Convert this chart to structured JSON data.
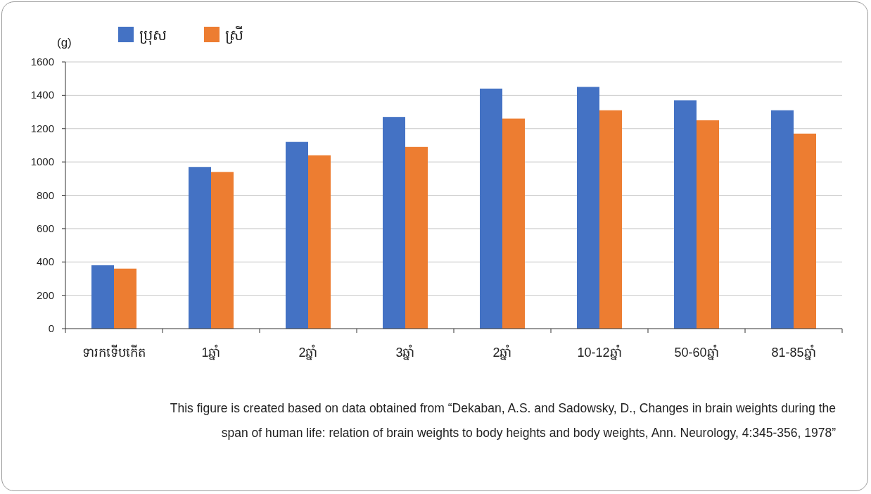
{
  "chart_data": {
    "type": "bar",
    "ylabel": "(g)",
    "categories": [
      "ទារកទើបកើត",
      "1ឆ្នាំ",
      "2ឆ្នាំ",
      "3ឆ្នាំ",
      "2ឆ្នាំ",
      "10-12ឆ្នាំ",
      "50-60ឆ្នាំ",
      "81-85ឆ្នាំ"
    ],
    "series": [
      {
        "name": "ប្រុស",
        "color": "#4472c4",
        "values": [
          380,
          970,
          1120,
          1270,
          1440,
          1450,
          1370,
          1310
        ]
      },
      {
        "name": "ស្រី",
        "color": "#ed7d31",
        "values": [
          360,
          940,
          1040,
          1090,
          1260,
          1310,
          1250,
          1170
        ]
      }
    ],
    "ylim": [
      0,
      1600
    ],
    "yticks": [
      0,
      200,
      400,
      600,
      800,
      1000,
      1200,
      1400,
      1600
    ],
    "grid": "y",
    "legend": "top",
    "annotations": [
      "This figure is created based on data obtained from “Dekaban, A.S. and Sadowsky, D., Changes in brain weights during the span of human life: relation of brain weights to body heights and body weights, Ann. Neurology, 4:345-356, 1978”"
    ]
  }
}
